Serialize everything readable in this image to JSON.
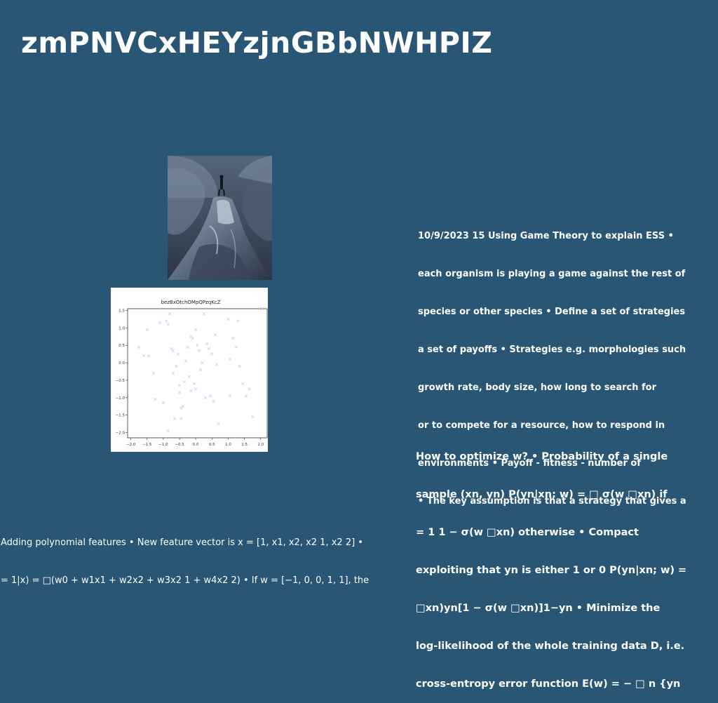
{
  "slide": {
    "title": "zmPNVCxHEYzjnGBbNWHPIZ",
    "background_color": "#285674",
    "text_color": "#ffffff"
  },
  "text_blocks": {
    "ess": [
      "10/9/2023 15 Using Game Theory to explain ESS •",
      "each organism is playing a game against the rest of",
      "species or other species • Define a set of strategies",
      "a set of payoffs • Strategies e.g. morphologies such",
      "growth rate, body size, how long to search for",
      "or to compete for a resource, how to respond in",
      "environments • Payoff - fitness - number of",
      "• The key assumption is that a strategy that gives a"
    ],
    "optimize": [
      "How to optimize w? • Probability of a single",
      "sample (xn, yn) P(yn|xn; w) = □ σ(w □xn) if",
      "= 1 1 − σ(w □xn) otherwise • Compact",
      "exploiting that yn is either 1 or 0 P(yn|xn; w) =",
      "□xn)yn[1 − σ(w □xn)]1−yn • Minimize the",
      "log-likelihood of the whole training data D, i.e.",
      "cross-entropy error function E(w) = − □ n {yn"
    ],
    "polynomial": [
      "Adding polynomial features • New feature vector is x = [1, x1, x2, x2 1, x2 2] •",
      "= 1|x) = □(w0 + w1x1 + w2x2 + w3x2 1 + w4x2 2) • If w = [−1, 0, 0, 1, 1], the"
    ]
  },
  "chart_data": {
    "type": "scatter",
    "title": "bezBxOtchOMpQPzqKcZ",
    "xlabel": "",
    "ylabel": "",
    "xlim": [
      -2.1,
      2.2
    ],
    "ylim": [
      -2.15,
      1.55
    ],
    "xticks": [
      "−2.0",
      "−1.5",
      "−1.0",
      "−0.5",
      "0.0",
      "0.5",
      "1.0",
      "1.5",
      "2.0"
    ],
    "yticks": [
      "1.5",
      "1.0",
      "0.5",
      "0.0",
      "−0.5",
      "−1.0",
      "−1.5",
      "−2.0"
    ],
    "xtick_values": [
      -2.0,
      -1.5,
      -1.0,
      -0.5,
      0.0,
      0.5,
      1.0,
      1.5,
      2.0
    ],
    "ytick_values": [
      1.5,
      1.0,
      0.5,
      0.0,
      -0.5,
      -1.0,
      -1.5,
      -2.0
    ],
    "marker": "x",
    "color": "#d9c8f0",
    "grid": false,
    "points": [
      {
        "x": -1.75,
        "y": 0.45
      },
      {
        "x": -1.6,
        "y": 0.2
      },
      {
        "x": -1.5,
        "y": 0.95
      },
      {
        "x": -1.45,
        "y": 0.2
      },
      {
        "x": -1.3,
        "y": -0.3
      },
      {
        "x": -1.25,
        "y": -1.05
      },
      {
        "x": -1.1,
        "y": 1.15
      },
      {
        "x": -1.0,
        "y": -1.15
      },
      {
        "x": -0.9,
        "y": 1.2
      },
      {
        "x": -0.85,
        "y": 1.1
      },
      {
        "x": -0.8,
        "y": 1.4
      },
      {
        "x": -0.75,
        "y": 0.4
      },
      {
        "x": -0.7,
        "y": -0.3
      },
      {
        "x": -0.7,
        "y": 0.35
      },
      {
        "x": -0.6,
        "y": -0.1
      },
      {
        "x": -0.55,
        "y": 0.25
      },
      {
        "x": -0.5,
        "y": -0.65
      },
      {
        "x": -0.5,
        "y": -0.85
      },
      {
        "x": -0.45,
        "y": -1.3
      },
      {
        "x": -0.4,
        "y": -1.25
      },
      {
        "x": -0.35,
        "y": -0.55
      },
      {
        "x": -0.3,
        "y": 0.05
      },
      {
        "x": -0.25,
        "y": 0.45
      },
      {
        "x": -0.2,
        "y": -0.4
      },
      {
        "x": -0.15,
        "y": 0.75
      },
      {
        "x": -0.15,
        "y": -0.8
      },
      {
        "x": -0.1,
        "y": 0.7
      },
      {
        "x": -0.05,
        "y": -0.6
      },
      {
        "x": 0.0,
        "y": 0.95
      },
      {
        "x": 0.0,
        "y": -0.75
      },
      {
        "x": 0.05,
        "y": 0.5
      },
      {
        "x": 0.1,
        "y": 0.35
      },
      {
        "x": 0.15,
        "y": -0.2
      },
      {
        "x": 0.2,
        "y": 0.0
      },
      {
        "x": 0.25,
        "y": 1.4
      },
      {
        "x": 0.3,
        "y": -1.0
      },
      {
        "x": 0.35,
        "y": 0.55
      },
      {
        "x": 0.4,
        "y": 0.4
      },
      {
        "x": 0.45,
        "y": -0.95
      },
      {
        "x": 0.5,
        "y": 0.25
      },
      {
        "x": 0.55,
        "y": -1.1
      },
      {
        "x": 0.6,
        "y": 0.8
      },
      {
        "x": 0.65,
        "y": -0.05
      },
      {
        "x": 0.7,
        "y": -1.75
      },
      {
        "x": 1.0,
        "y": 1.25
      },
      {
        "x": 1.05,
        "y": -0.95
      },
      {
        "x": 1.05,
        "y": 0.1
      },
      {
        "x": 1.15,
        "y": 0.7
      },
      {
        "x": 1.25,
        "y": 0.45
      },
      {
        "x": 1.3,
        "y": 1.2
      },
      {
        "x": 1.35,
        "y": -0.1
      },
      {
        "x": 1.55,
        "y": -0.95
      },
      {
        "x": 1.65,
        "y": -0.75
      },
      {
        "x": 1.75,
        "y": -1.55
      },
      {
        "x": 2.05,
        "y": 1.55
      },
      {
        "x": -0.45,
        "y": -1.6
      },
      {
        "x": -0.65,
        "y": -1.6
      },
      {
        "x": -0.85,
        "y": -1.95
      },
      {
        "x": 1.45,
        "y": -0.6
      }
    ]
  }
}
